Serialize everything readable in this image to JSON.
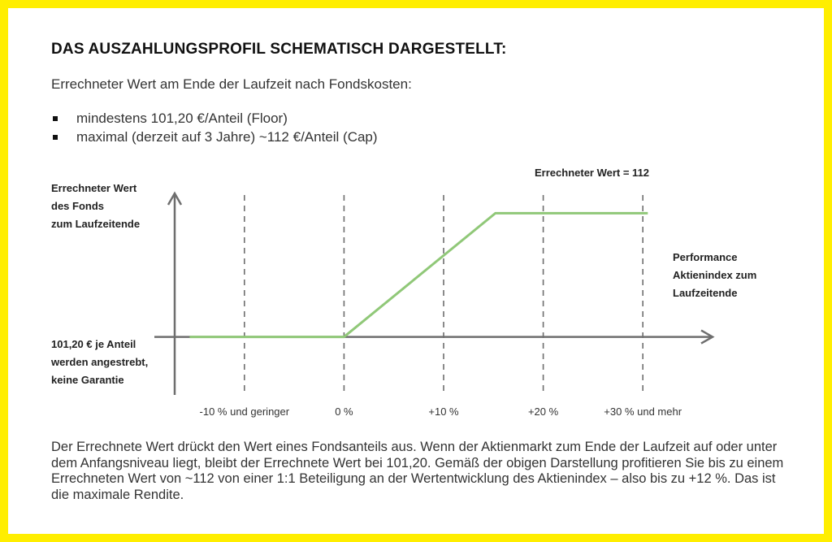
{
  "header": {
    "title": "DAS AUSZAHLUNGSPROFIL SCHEMATISCH DARGESTELLT:",
    "subtitle": "Errechneter Wert am Ende der Laufzeit nach Fondskosten:"
  },
  "bullets": [
    "mindestens 101,20 €/Anteil (Floor)",
    "maximal (derzeit auf 3 Jahre) ~112 €/Anteil (Cap)"
  ],
  "chart_data": {
    "type": "line",
    "y_axis_label": [
      "Errechneter Wert",
      "des Fonds",
      "zum Laufzeitende"
    ],
    "x_axis_label": [
      "Performance",
      "Aktienindex zum",
      "Laufzeitende"
    ],
    "floor_label": [
      "101,20 € je Anteil",
      "werden angestrebt,",
      "keine Garantie"
    ],
    "cap_label": "Errechneter Wert = 112",
    "x_ticks": [
      {
        "value": -10,
        "label": "-10 % und geringer"
      },
      {
        "value": 0,
        "label": "0 %"
      },
      {
        "value": 10,
        "label": "+10 %"
      },
      {
        "value": 20,
        "label": "+20 %"
      },
      {
        "value": 30,
        "label": "+30 % und mehr"
      }
    ],
    "series": [
      {
        "points": [
          [
            -15.5,
            0
          ],
          [
            0,
            0
          ],
          [
            15.2,
            12
          ],
          [
            30.5,
            12
          ]
        ]
      }
    ],
    "xlim": [
      -17,
      37
    ],
    "ylim": [
      -5,
      14
    ],
    "line_color": "#90c878",
    "axis_color": "#6e6e6e",
    "grid_color": "#6e6e6e"
  },
  "footer": {
    "paragraph": "Der Errechnete Wert drückt den Wert eines Fondsanteils aus. Wenn der Aktienmarkt zum Ende der Laufzeit auf oder unter dem Anfangsniveau liegt, bleibt der Errechnete Wert bei 101,20. Gemäß der obigen Darstellung profitieren Sie bis zu einem Errechneten Wert von ~112 von einer 1:1 Beteiligung an der Wertentwicklung des Aktienindex – also bis zu +12 %. Das ist die maximale Rendite."
  }
}
